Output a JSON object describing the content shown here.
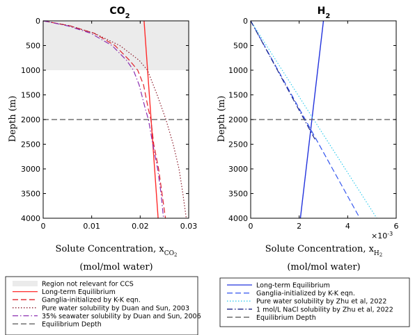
{
  "chart_data": [
    {
      "type": "line",
      "title": "CO",
      "title_sub": "2",
      "xlabel": "Solute Concentration, x",
      "xlabel_sub": "CO",
      "xlabel_subsub": "2",
      "xunits": "(mol/mol water)",
      "ylabel": "Depth (m)",
      "xlim": [
        0,
        0.03
      ],
      "ylim": [
        0,
        4000
      ],
      "y_reversed": true,
      "xticks": [
        "0",
        "0.01",
        "0.02",
        "0.03"
      ],
      "yticks": [
        "0",
        "500",
        "1000",
        "1500",
        "2000",
        "2500",
        "3000",
        "3500",
        "4000"
      ],
      "grid": false,
      "shaded_region": {
        "name": "Region not relevant for CCS",
        "depth_range": [
          0,
          1000
        ],
        "color": "#ebebeb"
      },
      "equilibrium_depth": 2000,
      "series": [
        {
          "name": "Long-term Equilibrium",
          "color": "#ff2a2a",
          "dash": "solid",
          "points": [
            [
              0.0208,
              0
            ],
            [
              0.0237,
              4000
            ]
          ]
        },
        {
          "name": "Ganglia-initialized by K-K eqn.",
          "color": "#e0202a",
          "dash": "long",
          "points": [
            [
              0,
              0
            ],
            [
              0.0055,
              100
            ],
            [
              0.0105,
              250
            ],
            [
              0.0148,
              500
            ],
            [
              0.0178,
              800
            ],
            [
              0.0195,
              1000
            ],
            [
              0.0207,
              1300
            ],
            [
              0.0217,
              1800
            ],
            [
              0.0222,
              2000
            ],
            [
              0.0228,
              2500
            ],
            [
              0.0238,
              3000
            ],
            [
              0.0245,
              3500
            ],
            [
              0.0252,
              4000
            ]
          ]
        },
        {
          "name": "Pure water solubility by Duan and Sun, 2003",
          "color": "#8b1a2a",
          "dash": "dot",
          "points": [
            [
              0,
              0
            ],
            [
              0.0055,
              100
            ],
            [
              0.0105,
              250
            ],
            [
              0.0158,
              500
            ],
            [
              0.0198,
              800
            ],
            [
              0.0215,
              1000
            ],
            [
              0.0235,
              1500
            ],
            [
              0.0253,
              2000
            ],
            [
              0.0268,
              2500
            ],
            [
              0.028,
              3000
            ],
            [
              0.0288,
              3500
            ],
            [
              0.0295,
              4000
            ]
          ]
        },
        {
          "name": "35% seawater solubility by Duan and Sun, 2006",
          "color": "#8a2bb0",
          "dash": "dashdot",
          "points": [
            [
              0,
              0
            ],
            [
              0.005,
              100
            ],
            [
              0.0098,
              250
            ],
            [
              0.0142,
              500
            ],
            [
              0.0172,
              800
            ],
            [
              0.0186,
              1000
            ],
            [
              0.0198,
              1300
            ],
            [
              0.0211,
              1800
            ],
            [
              0.0217,
              2000
            ],
            [
              0.0226,
              2500
            ],
            [
              0.0236,
              3000
            ],
            [
              0.0243,
              3500
            ],
            [
              0.0248,
              4000
            ]
          ]
        },
        {
          "name": "Equilibrium Depth",
          "color": "#555555",
          "dash": "long",
          "hline": 2000
        }
      ]
    },
    {
      "type": "line",
      "title": "H",
      "title_sub": "2",
      "xlabel": "Solute Concentration, x",
      "xlabel_sub": "H",
      "xlabel_subsub": "2",
      "xunits": "(mol/mol water)",
      "ylabel": "Depth (m)",
      "xlim": [
        0,
        6
      ],
      "x_multiplier": "×10",
      "x_multiplier_exp": "-3",
      "ylim": [
        0,
        4000
      ],
      "y_reversed": true,
      "xticks": [
        "0",
        "2",
        "4",
        "6"
      ],
      "yticks": [
        "0",
        "500",
        "1000",
        "1500",
        "2000",
        "2500",
        "3000",
        "3500",
        "4000"
      ],
      "grid": false,
      "equilibrium_depth": 2000,
      "series": [
        {
          "name": "Long-term Equilibrium",
          "color": "#2233dd",
          "dash": "solid",
          "points": [
            [
              3.0,
              0
            ],
            [
              2.05,
              4000
            ]
          ]
        },
        {
          "name": "Ganglia-initialized by K-K eqn.",
          "color": "#3355ee",
          "dash": "long",
          "points": [
            [
              0,
              0
            ],
            [
              4.5,
              4000
            ]
          ]
        },
        {
          "name": "Pure water solubility by Zhu et al, 2022",
          "color": "#33ccee",
          "dash": "dot",
          "points": [
            [
              0,
              0
            ],
            [
              5.2,
              4000
            ]
          ]
        },
        {
          "name": "1 mol/L NaCl solubility by Zhu et al, 2022",
          "color": "#1a2288",
          "dash": "dashdot",
          "points": [
            [
              0,
              0
            ],
            [
              2.65,
              2400
            ]
          ]
        },
        {
          "name": "Equilibrium Depth",
          "color": "#555555",
          "dash": "long",
          "hline": 2000
        }
      ]
    }
  ]
}
